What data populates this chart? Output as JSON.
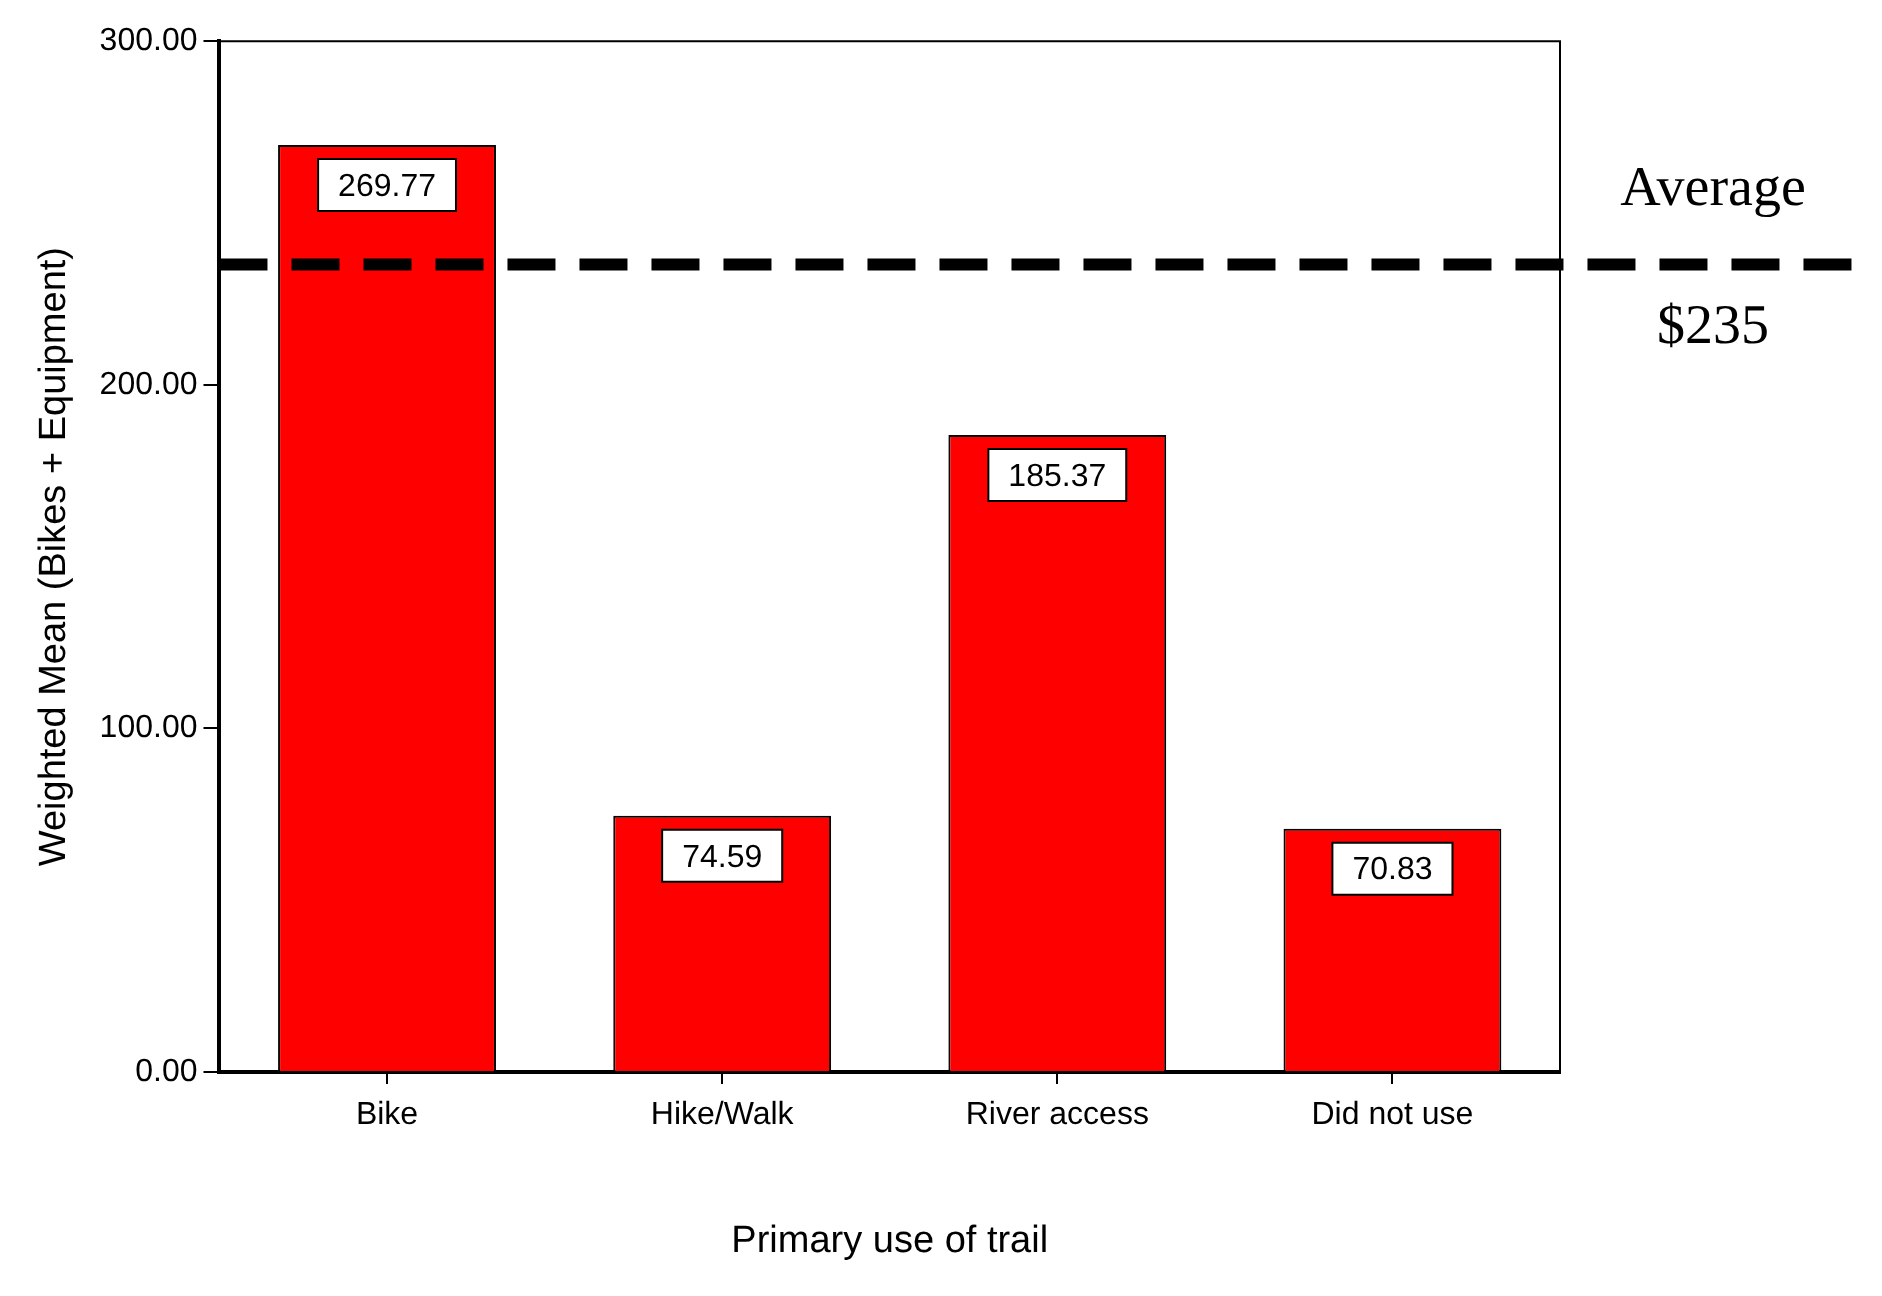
{
  "chart_data": {
    "type": "bar",
    "xlabel": "Primary use of trail",
    "ylabel": "Weighted Mean (Bikes + Equipment)",
    "categories": [
      "Bike",
      "Hike/Walk",
      "River access",
      "Did not use"
    ],
    "values": [
      269.77,
      74.59,
      185.37,
      70.83
    ],
    "color": "#ff0000",
    "ylim": [
      0,
      300
    ],
    "yticks": [
      {
        "value": 0,
        "label": "0.00"
      },
      {
        "value": 100,
        "label": "100.00"
      },
      {
        "value": 200,
        "label": "200.00"
      },
      {
        "value": 300,
        "label": "300.00"
      }
    ],
    "grid": false,
    "legend": false,
    "data_labels": true,
    "ref_lines": [
      {
        "axis": "y",
        "value": 235,
        "label": "Average $235",
        "color": "#000000",
        "line_style": "dashed"
      }
    ]
  }
}
